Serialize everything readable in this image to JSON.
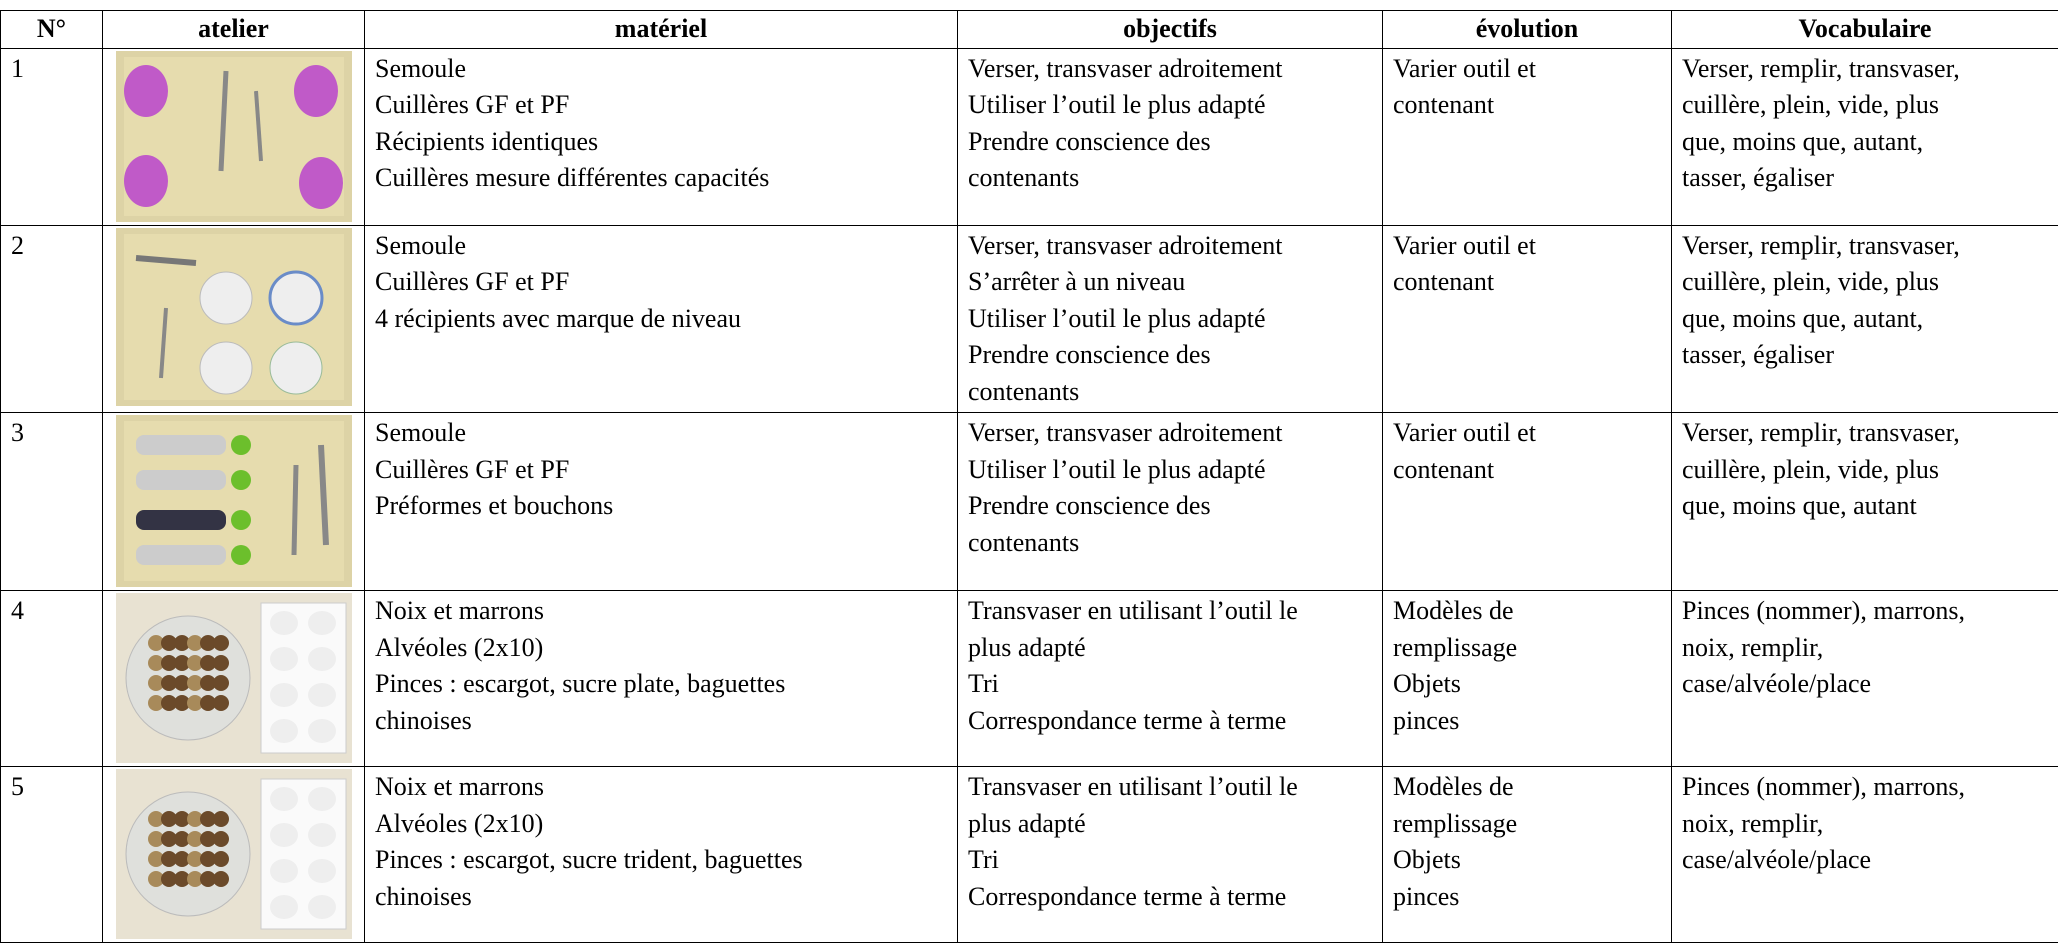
{
  "table": {
    "header": [
      "N°",
      "atelier",
      "matériel",
      "objectifs",
      "évolution",
      "Vocabulaire"
    ],
    "rows": [
      {
        "n": "1",
        "materiel": [
          "Semoule",
          "Cuillères GF et PF",
          "Récipients identiques",
          "Cuillères mesure différentes capacités"
        ],
        "objectifs": [
          "Verser, transvaser adroitement",
          "Utiliser l’outil le plus adapté",
          "Prendre conscience des",
          "contenants"
        ],
        "evolution": [
          "Varier outil et",
          "contenant"
        ],
        "vocabulaire": [
          "Verser, remplir, transvaser,",
          "cuillère, plein, vide, plus",
          "que, moins que, autant,",
          "tasser, égaliser"
        ]
      },
      {
        "n": "2",
        "materiel": [
          "Semoule",
          "Cuillères GF et PF",
          "4 récipients avec marque de niveau"
        ],
        "objectifs": [
          "Verser, transvaser adroitement",
          "S’arrêter à un niveau",
          "Utiliser l’outil le plus adapté",
          "Prendre conscience des",
          "contenants"
        ],
        "evolution": [
          "Varier outil et",
          "contenant"
        ],
        "vocabulaire": [
          "Verser, remplir, transvaser,",
          "cuillère, plein, vide, plus",
          "que, moins que, autant,",
          "tasser, égaliser"
        ]
      },
      {
        "n": "3",
        "materiel": [
          "Semoule",
          "Cuillères GF et PF",
          "Préformes et bouchons"
        ],
        "objectifs": [
          "Verser, transvaser adroitement",
          "Utiliser l’outil le plus adapté",
          "Prendre conscience des",
          "contenants"
        ],
        "evolution": [
          "Varier outil et",
          "contenant"
        ],
        "vocabulaire": [
          "Verser, remplir, transvaser,",
          "cuillère, plein, vide, plus",
          "que, moins que, autant"
        ]
      },
      {
        "n": "4",
        "materiel": [
          "Noix et marrons",
          "Alvéoles (2x10)",
          "Pinces : escargot, sucre plate, baguettes",
          "chinoises"
        ],
        "objectifs": [
          "Transvaser en utilisant l’outil le",
          "plus adapté",
          "Tri",
          "Correspondance terme à terme"
        ],
        "evolution": [
          "Modèles de",
          "remplissage",
          "Objets",
          "pinces"
        ],
        "vocabulaire": [
          "Pinces (nommer), marrons,",
          "noix, remplir,",
          "case/alvéole/place"
        ]
      },
      {
        "n": "5",
        "materiel": [
          "Noix et marrons",
          "Alvéoles (2x10)",
          "Pinces : escargot, sucre trident, baguettes",
          "chinoises"
        ],
        "objectifs": [
          "Transvaser en utilisant l’outil le",
          "plus adapté",
          "Tri",
          "Correspondance terme à terme"
        ],
        "evolution": [
          "Modèles de",
          "remplissage",
          "Objets",
          "pinces"
        ],
        "vocabulaire": [
          "Pinces (nommer), marrons,",
          "noix, remplir,",
          "case/alvéole/place"
        ]
      }
    ]
  }
}
